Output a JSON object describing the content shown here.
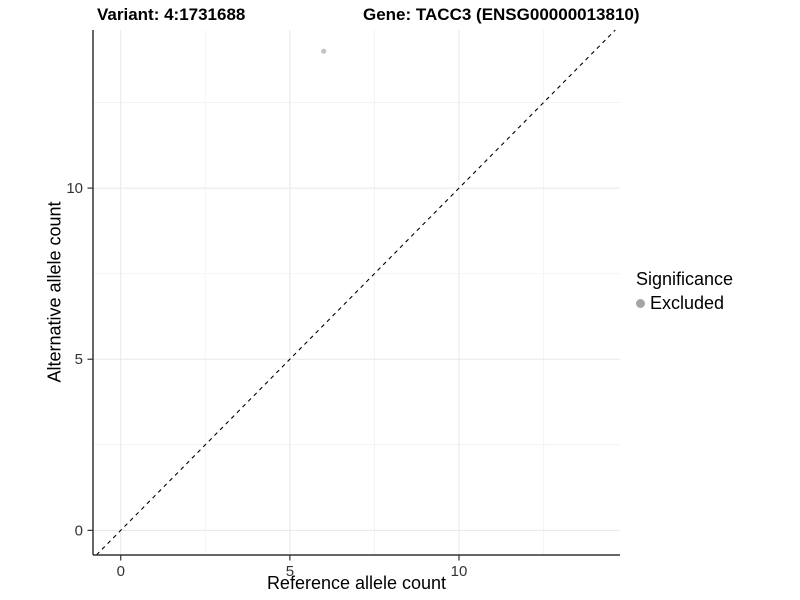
{
  "page": {
    "background": "#ffffff"
  },
  "chart_data": {
    "type": "scatter",
    "titles": {
      "left": "Variant: 4:1731688",
      "right": "Gene: TACC3 (ENSG00000013810)"
    },
    "xlabel": "Reference allele count",
    "ylabel": "Alternative allele count",
    "xlim": [
      -0.82,
      14.76
    ],
    "ylim": [
      -0.72,
      14.62
    ],
    "x_ticks": [
      0,
      5,
      10
    ],
    "y_ticks": [
      0,
      5,
      10
    ],
    "x_minor_ticks": [
      2.5,
      7.5,
      12.5
    ],
    "y_minor_ticks": [
      2.5,
      7.5,
      12.5
    ],
    "grid": "major and minor, light grey on white",
    "series": [
      {
        "name": "Excluded",
        "color": "#c4c4c4",
        "point_radius": 2.6,
        "points": [
          {
            "x": 6,
            "y": 14
          }
        ]
      }
    ],
    "identity_line": {
      "slope": 1,
      "intercept": 0,
      "style": "dashed",
      "color": "#000000"
    },
    "legend": {
      "title": "Significance",
      "position": "right",
      "items": [
        {
          "label": "Excluded",
          "color": "#a5a5a5"
        }
      ]
    },
    "colors": {
      "axis_line": "#333333",
      "tick_mark": "#333333",
      "tick_label": "#333333",
      "grid_major": "#e8e8e8",
      "grid_minor": "#f4f4f4"
    }
  }
}
